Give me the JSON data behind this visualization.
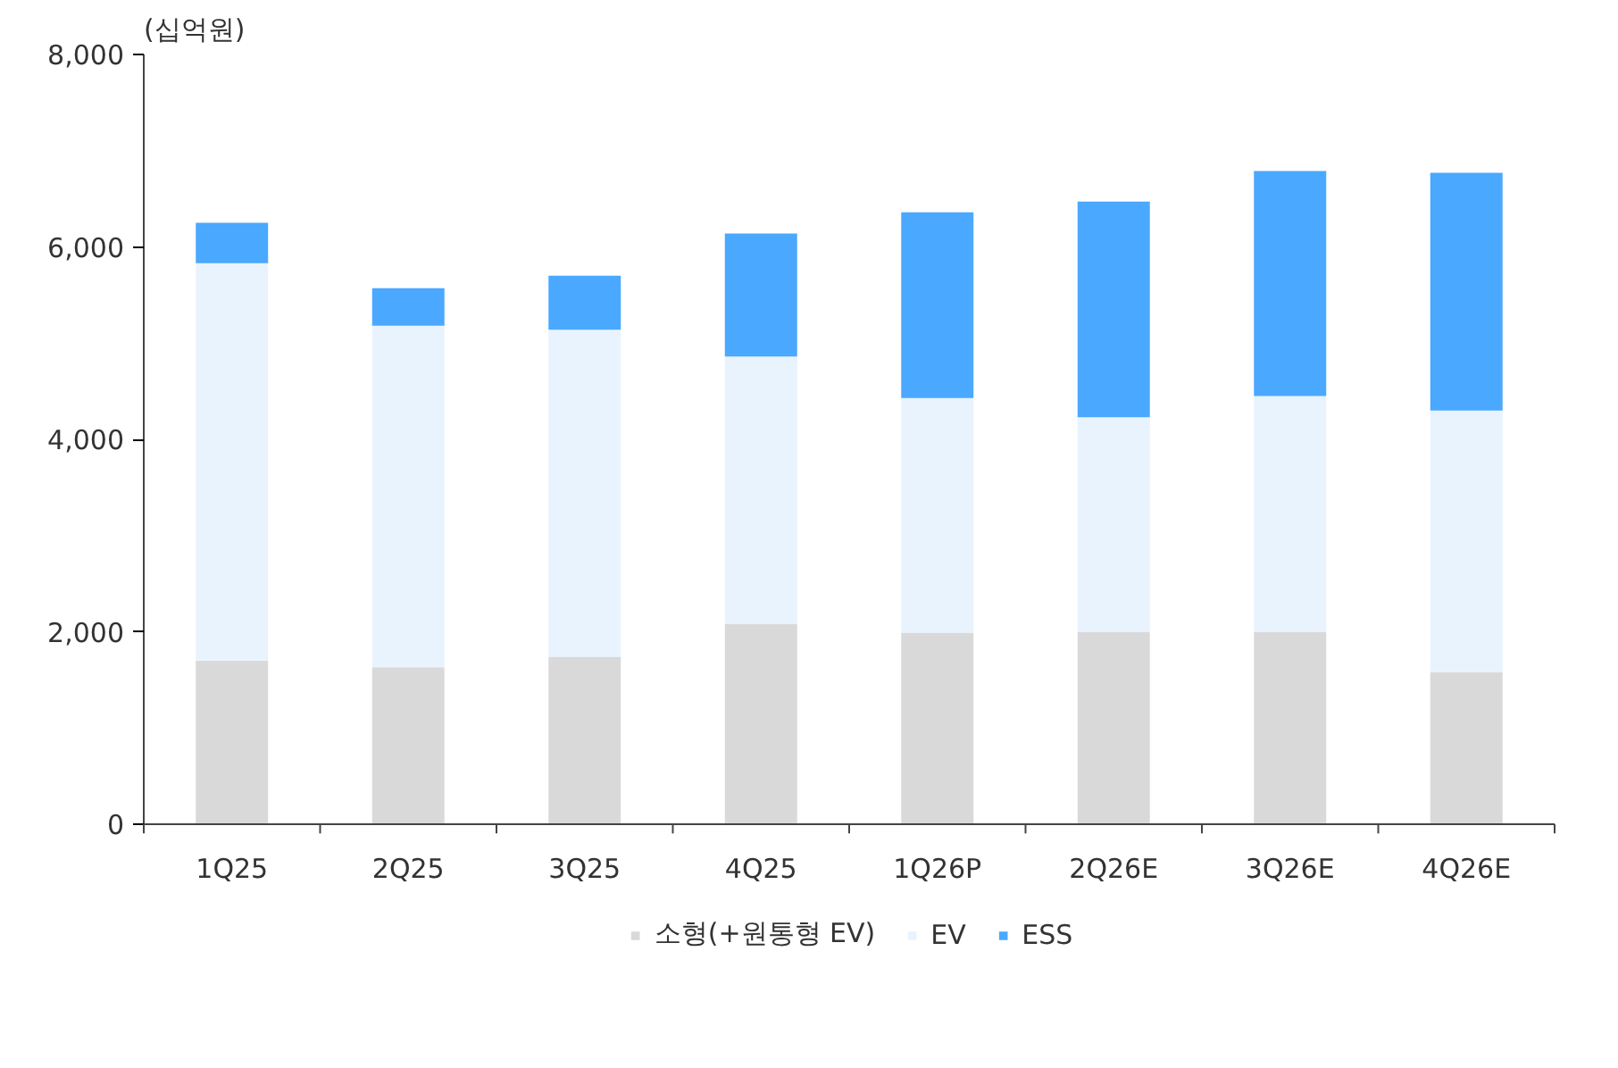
{
  "chart_data": {
    "type": "bar",
    "stacked": true,
    "ylabel": "(십억원)",
    "categories": [
      "1Q25",
      "2Q25",
      "3Q25",
      "4Q25",
      "1Q26P",
      "2Q26E",
      "3Q26E",
      "4Q26E"
    ],
    "series": [
      {
        "name": "소형(+원통형 EV)",
        "color": "#d9d9d9",
        "values": [
          1700,
          1630,
          1740,
          2080,
          1990,
          2000,
          2000,
          1580
        ]
      },
      {
        "name": "EV",
        "color": "#e8f3fe",
        "values": [
          4130,
          3550,
          3400,
          2780,
          2440,
          2230,
          2450,
          2720
        ]
      },
      {
        "name": "ESS",
        "color": "#4aa8ff",
        "values": [
          420,
          390,
          560,
          1280,
          1930,
          2240,
          2340,
          2470
        ]
      }
    ],
    "ylim": [
      0,
      8000
    ],
    "yticks": [
      {
        "value": 0,
        "label": "0"
      },
      {
        "value": 2000,
        "label": "2,000"
      },
      {
        "value": 4000,
        "label": "4,000"
      },
      {
        "value": 6000,
        "label": "6,000"
      },
      {
        "value": 8000,
        "label": "8,000"
      }
    ],
    "grid": false,
    "legend": "bottom"
  }
}
